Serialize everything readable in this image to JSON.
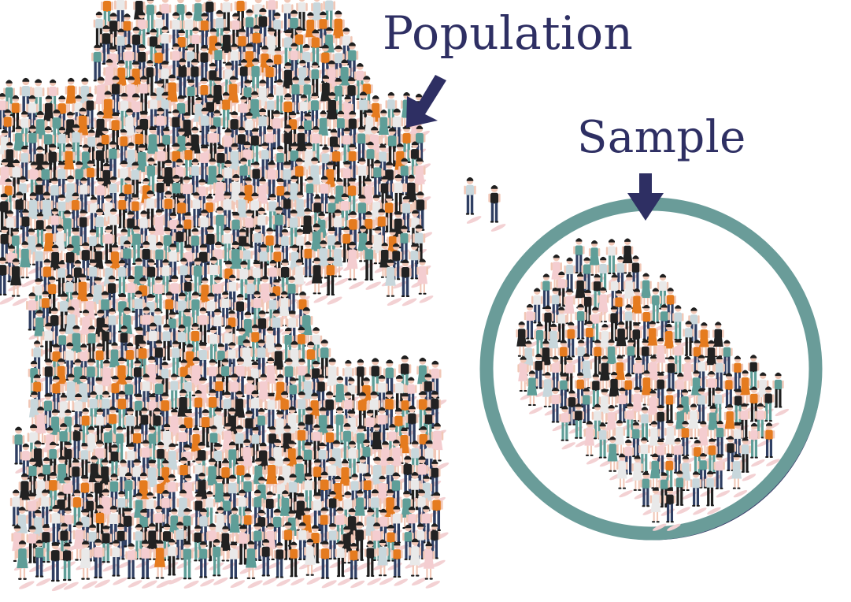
{
  "labels": {
    "population": "Population",
    "sample": "Sample"
  },
  "colors": {
    "label_text": "#2e2f63",
    "arrow": "#2e2f63",
    "ring": "#6a9c99",
    "ring_shadow": "#3b3d6b",
    "skin": "#f1c7b6",
    "hair": "#1f1f1f",
    "shirt_palette": [
      "#e57b1f",
      "#5f9e98",
      "#f4cdd0",
      "#222222",
      "#c8d7dc",
      "#e9e9e9"
    ],
    "pants_palette": [
      "#2f3f63",
      "#1f1f1f",
      "#5f9e98",
      "#2f3f63"
    ],
    "shadow": "#f3d1d3"
  },
  "icons": [
    "down-arrow-icon",
    "person-icon",
    "sample-circle-icon"
  ]
}
